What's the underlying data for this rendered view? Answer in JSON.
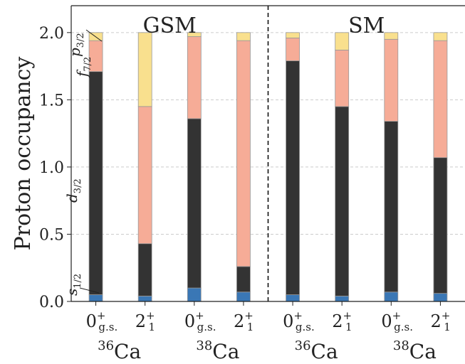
{
  "chart_data": {
    "type": "bar",
    "stacked": true,
    "ylabel": "Proton occupancy",
    "ylim": [
      0,
      2.2
    ],
    "yticks": [
      "0.0",
      "0.5",
      "1.0",
      "1.5",
      "2.0"
    ],
    "grid": "horizontal dashed",
    "panels": [
      {
        "label": "GSM",
        "bars": [
          0,
          1,
          2,
          3
        ]
      },
      {
        "label": "SM",
        "bars": [
          4,
          5,
          6,
          7
        ]
      }
    ],
    "bars": [
      {
        "level": "0",
        "parity": "+",
        "sub": "g.s.",
        "nucleus_mass": "36",
        "nucleus": "Ca",
        "values": [
          0.05,
          1.66,
          0.23,
          0.06
        ]
      },
      {
        "level": "2",
        "parity": "+",
        "sub": "1",
        "nucleus_mass": "",
        "nucleus": "",
        "values": [
          0.04,
          0.39,
          1.02,
          0.55
        ]
      },
      {
        "level": "0",
        "parity": "+",
        "sub": "g.s.",
        "nucleus_mass": "38",
        "nucleus": "Ca",
        "values": [
          0.1,
          1.26,
          0.61,
          0.03
        ]
      },
      {
        "level": "2",
        "parity": "+",
        "sub": "1",
        "nucleus_mass": "",
        "nucleus": "",
        "values": [
          0.07,
          0.19,
          1.68,
          0.06
        ]
      },
      {
        "level": "0",
        "parity": "+",
        "sub": "g.s.",
        "nucleus_mass": "36",
        "nucleus": "Ca",
        "values": [
          0.05,
          1.74,
          0.17,
          0.04
        ]
      },
      {
        "level": "2",
        "parity": "+",
        "sub": "1",
        "nucleus_mass": "",
        "nucleus": "",
        "values": [
          0.04,
          1.41,
          0.42,
          0.13
        ]
      },
      {
        "level": "0",
        "parity": "+",
        "sub": "g.s.",
        "nucleus_mass": "38",
        "nucleus": "Ca",
        "values": [
          0.07,
          1.27,
          0.61,
          0.05
        ]
      },
      {
        "level": "2",
        "parity": "+",
        "sub": "1",
        "nucleus_mass": "",
        "nucleus": "",
        "values": [
          0.06,
          1.01,
          0.87,
          0.06
        ]
      }
    ],
    "series": [
      {
        "letter": "s",
        "sub": "1/2",
        "color": "#3a77b5"
      },
      {
        "letter": "d",
        "sub": "3/2",
        "color": "#333333"
      },
      {
        "letter": "f",
        "sub": "7/2",
        "color": "#f6ac97"
      },
      {
        "letter": "p",
        "sub": "3/2",
        "color": "#f9e08e"
      }
    ]
  }
}
